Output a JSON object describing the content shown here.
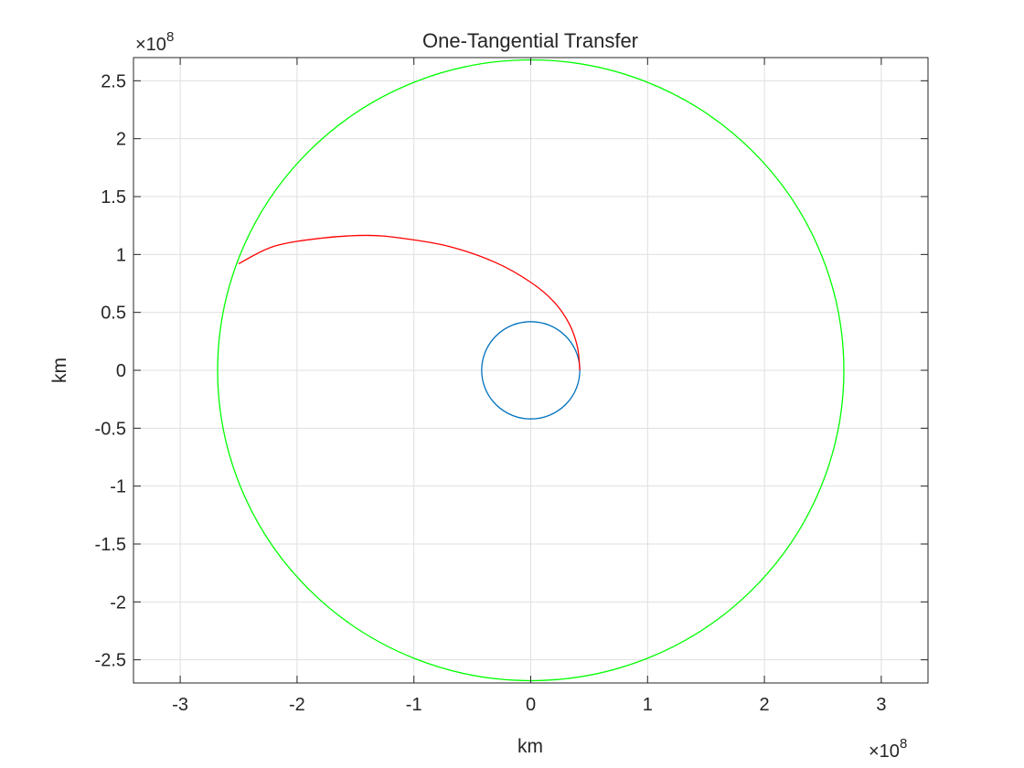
{
  "chart_data": {
    "type": "line",
    "title": "One-Tangential Transfer",
    "xlabel": "km",
    "ylabel": "km",
    "x_multiplier": "×10",
    "x_multiplier_exp": "8",
    "y_multiplier": "×10",
    "y_multiplier_exp": "8",
    "xlim": [
      -340000000.0,
      340000000.0
    ],
    "ylim": [
      -270000000.0,
      270000000.0
    ],
    "xticks": [
      -300000000.0,
      -200000000.0,
      -100000000.0,
      0,
      100000000.0,
      200000000.0,
      300000000.0
    ],
    "xtick_labels": [
      "-3",
      "-2",
      "-1",
      "0",
      "1",
      "2",
      "3"
    ],
    "yticks": [
      250000000.0,
      200000000.0,
      150000000.0,
      100000000.0,
      50000000.0,
      0,
      -50000000.0,
      -100000000.0,
      -150000000.0,
      -200000000.0,
      -250000000.0
    ],
    "ytick_labels": [
      "2.5",
      "2",
      "1.5",
      "1",
      "0.5",
      "0",
      "-0.5",
      "-1",
      "-1.5",
      "-2",
      "-2.5"
    ],
    "grid": true,
    "series": [
      {
        "kind": "circle",
        "center": [
          0,
          0
        ],
        "radius": 42000000.0,
        "color": "#0072BD"
      },
      {
        "kind": "circle",
        "center": [
          0,
          0
        ],
        "radius": 268000000.0,
        "color": "#00FF00"
      },
      {
        "kind": "curve",
        "color": "#FF0000",
        "points": [
          [
            42000000.0,
            0
          ],
          [
            40000000.0,
            20000000.0
          ],
          [
            33000000.0,
            40000000.0
          ],
          [
            20000000.0,
            59000000.0
          ],
          [
            0,
            76000000.0
          ],
          [
            -30000000.0,
            93000000.0
          ],
          [
            -70000000.0,
            107000000.0
          ],
          [
            -110000000.0,
            114000000.0
          ],
          [
            -140000000.0,
            116500000.0
          ],
          [
            -180000000.0,
            114000000.0
          ],
          [
            -220000000.0,
            107000000.0
          ],
          [
            -250000000.0,
            92000000.0
          ]
        ]
      }
    ]
  }
}
